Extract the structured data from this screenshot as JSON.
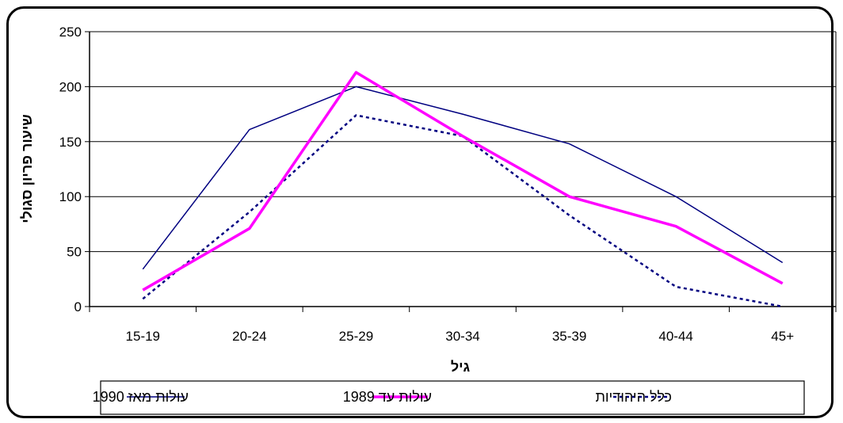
{
  "chart_data": {
    "type": "line",
    "categories": [
      "15-19",
      "20-24",
      "25-29",
      "30-34",
      "35-39",
      "40-44",
      "45+"
    ],
    "series": [
      {
        "name": "עולות מאז 1990",
        "color": "#000080",
        "style": "solid-thin",
        "values": [
          34,
          161,
          200,
          175,
          148,
          100,
          40
        ]
      },
      {
        "name": "עולות עד 1989",
        "color": "#ff00ff",
        "style": "solid-thick",
        "values": [
          15,
          71,
          213,
          155,
          100,
          73,
          21
        ]
      },
      {
        "name": "כלל היהודיות",
        "color": "#000080",
        "style": "dotted",
        "values": [
          7,
          86,
          174,
          155,
          83,
          18,
          0
        ]
      }
    ],
    "xlabel": "גיל",
    "ylabel": "שיעור פריון סגולי",
    "ylim": [
      0,
      250
    ],
    "yticks": [
      "0",
      "50",
      "100",
      "150",
      "200",
      "250"
    ],
    "grid": true,
    "legend_position": "bottom"
  }
}
